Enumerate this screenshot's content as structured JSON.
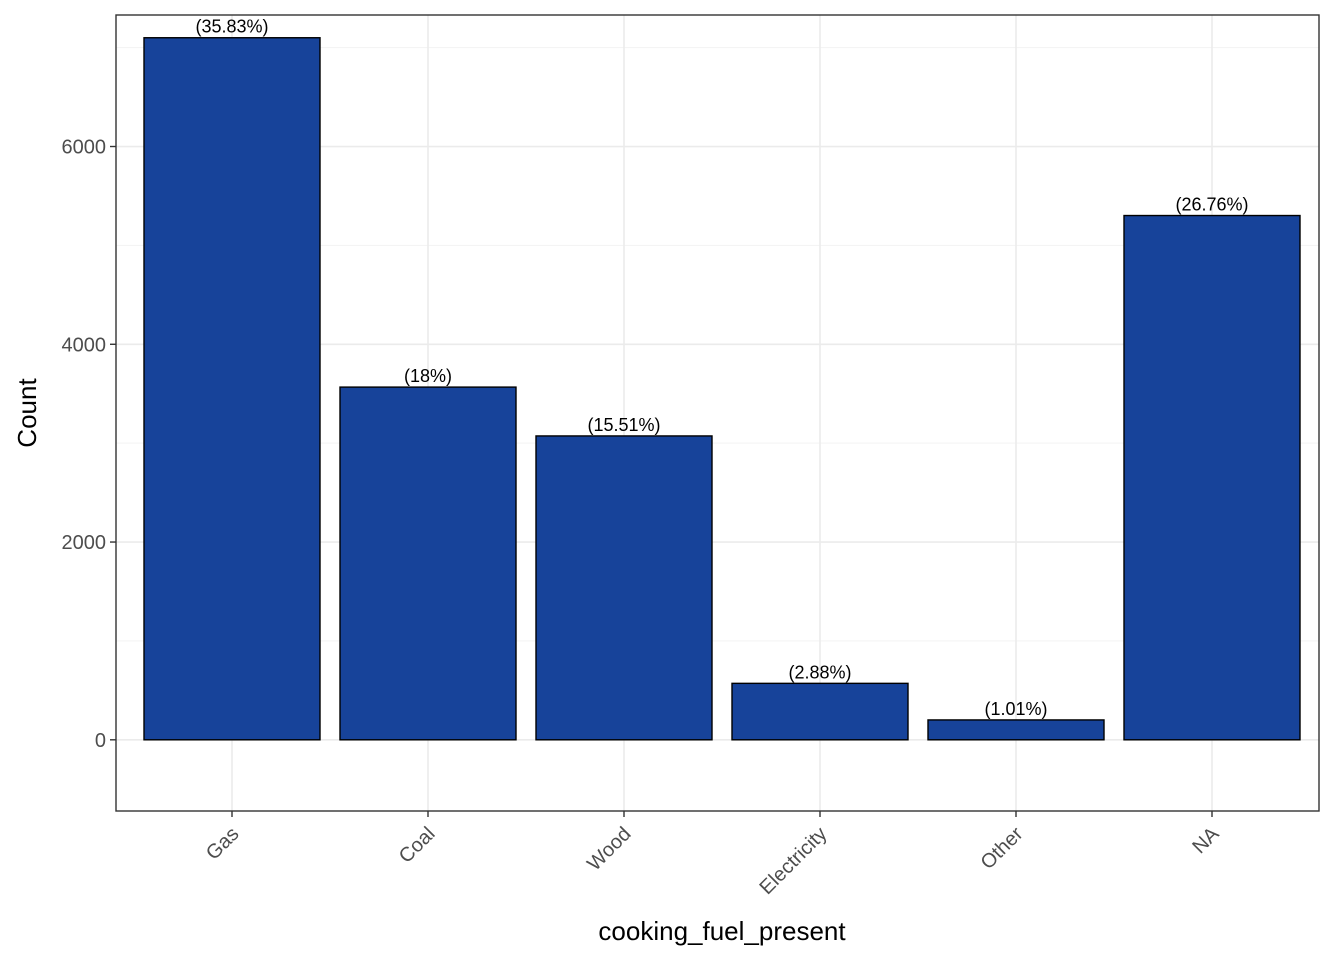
{
  "chart_data": {
    "type": "bar",
    "title": "",
    "xlabel": "cooking_fuel_present",
    "ylabel": "Count",
    "categories": [
      "Gas",
      "Coal",
      "Wood",
      "Electricity",
      "Other",
      "NA"
    ],
    "values": [
      7100,
      3567,
      3073,
      571,
      201,
      5302
    ],
    "data_labels": [
      "(35.83%)",
      "(18%)",
      "(15.51%)",
      "(2.88%)",
      "(1.01%)",
      "(26.76%)"
    ],
    "ylim": [
      -720,
      7330
    ],
    "yticks": [
      0,
      2000,
      4000,
      6000
    ],
    "ytick_labels": [
      "0",
      "2000",
      "4000",
      "6000"
    ],
    "grid": true,
    "legend": "none",
    "x_tick_rotation": "45 degrees",
    "colors": {
      "bar_fill": "#17439A",
      "bar_stroke": "#000000",
      "grid_major": "#ebebeb",
      "grid_minor": "#f3f3f3",
      "panel_border": "#333333",
      "background": "#ffffff"
    }
  }
}
